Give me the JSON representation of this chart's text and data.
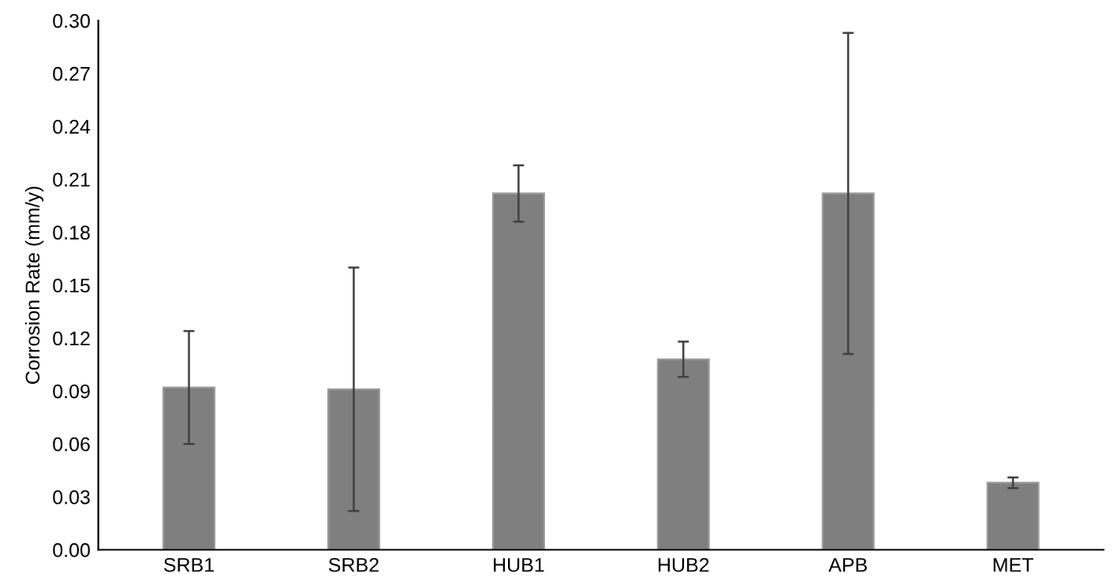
{
  "chart_data": {
    "type": "bar",
    "ylabel": "Corrosion Rate (mm/y)",
    "categories": [
      "SRB1",
      "SRB2",
      "HUB1",
      "HUB2",
      "APB",
      "MET"
    ],
    "values": [
      0.092,
      0.091,
      0.202,
      0.108,
      0.202,
      0.038
    ],
    "errors": [
      0.032,
      0.069,
      0.016,
      0.01,
      0.091,
      0.003
    ],
    "color": "#7f7f7f",
    "ylim": [
      0,
      0.3
    ],
    "yticks": [
      {
        "value": 0,
        "label": "0.00"
      },
      {
        "value": 0.03,
        "label": "0.03"
      },
      {
        "value": 0.06,
        "label": "0.06"
      },
      {
        "value": 0.09,
        "label": "0.09"
      },
      {
        "value": 0.12,
        "label": "0.12"
      },
      {
        "value": 0.15,
        "label": "0.15"
      },
      {
        "value": 0.18,
        "label": "0.18"
      },
      {
        "value": 0.21,
        "label": "0.21"
      },
      {
        "value": 0.24,
        "label": "0.24"
      },
      {
        "value": 0.27,
        "label": "0.27"
      },
      {
        "value": 0.3,
        "label": "0.30"
      }
    ],
    "grid": false
  }
}
